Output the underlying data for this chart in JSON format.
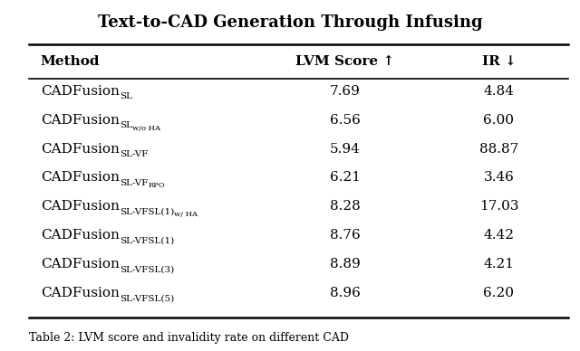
{
  "title": "Text-to-CAD Generation Through Infusing",
  "title_fontsize": 13,
  "col_header_method": "Method",
  "col_header_lvm": "LVM Score ↑",
  "col_header_ir": "IR ↓",
  "lvm_scores": [
    "7.69",
    "6.56",
    "5.94",
    "6.21",
    "8.28",
    "8.76",
    "8.89",
    "8.96"
  ],
  "ir_scores": [
    "4.84",
    "6.00",
    "88.87",
    "3.46",
    "17.03",
    "4.42",
    "4.21",
    "6.20"
  ],
  "method_main": "CADFusion",
  "method_subs": [
    [
      "SL",
      ""
    ],
    [
      "SL",
      "w/o HA"
    ],
    [
      "SL-VF",
      ""
    ],
    [
      "SL-VF",
      "RPO"
    ],
    [
      "SL-VFSL(1)",
      "w/ HA"
    ],
    [
      "SL-VFSL(1)",
      ""
    ],
    [
      "SL-VFSL(3)",
      ""
    ],
    [
      "SL-VFSL(5)",
      ""
    ]
  ],
  "bg_color": "#ffffff",
  "text_color": "#000000",
  "footer_text": "Table 2: LVM score and invalidity rate on different CAD",
  "main_fontsize": 11,
  "sub_fontsize": 7.5,
  "subsub_fontsize": 6.0,
  "header_fontsize": 11
}
